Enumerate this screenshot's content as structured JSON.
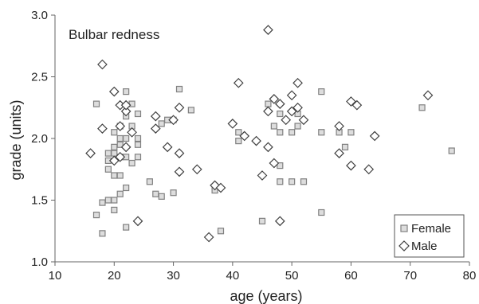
{
  "chart_data": {
    "type": "scatter",
    "title": "Bulbar redness",
    "xlabel": "age (years)",
    "ylabel": "grade (units)",
    "xlim": [
      10,
      80
    ],
    "ylim": [
      1.0,
      3.0
    ],
    "x_ticks": [
      10,
      20,
      30,
      40,
      50,
      60,
      70,
      80
    ],
    "y_ticks": [
      1.0,
      1.5,
      2.0,
      2.5,
      3.0
    ],
    "x_tick_labels": [
      "10",
      "20",
      "30",
      "40",
      "50",
      "60",
      "70",
      "80"
    ],
    "y_tick_labels": [
      "1.0",
      "1.5",
      "2.0",
      "2.5",
      "3.0"
    ],
    "grid": false,
    "legend_position": "bottom-right",
    "series": [
      {
        "name": "Female",
        "marker": "square",
        "color": "#808080",
        "points": [
          [
            17,
            2.28
          ],
          [
            17,
            1.38
          ],
          [
            18,
            1.48
          ],
          [
            18,
            1.23
          ],
          [
            19,
            1.88
          ],
          [
            19,
            1.82
          ],
          [
            19,
            1.75
          ],
          [
            19,
            1.5
          ],
          [
            20,
            2.05
          ],
          [
            20,
            1.93
          ],
          [
            20,
            1.88
          ],
          [
            20,
            1.7
          ],
          [
            20,
            1.5
          ],
          [
            20,
            1.42
          ],
          [
            21,
            2.1
          ],
          [
            21,
            2.0
          ],
          [
            21,
            1.95
          ],
          [
            21,
            1.85
          ],
          [
            21,
            1.7
          ],
          [
            21,
            1.55
          ],
          [
            22,
            2.38
          ],
          [
            22,
            2.18
          ],
          [
            22,
            2.0
          ],
          [
            22,
            1.85
          ],
          [
            22,
            1.6
          ],
          [
            22,
            1.28
          ],
          [
            23,
            2.28
          ],
          [
            23,
            2.1
          ],
          [
            23,
            1.8
          ],
          [
            24,
            2.2
          ],
          [
            24,
            2.0
          ],
          [
            24,
            1.95
          ],
          [
            24,
            1.85
          ],
          [
            26,
            1.65
          ],
          [
            27,
            1.55
          ],
          [
            28,
            2.12
          ],
          [
            28,
            1.53
          ],
          [
            29,
            2.15
          ],
          [
            30,
            2.15
          ],
          [
            30,
            1.56
          ],
          [
            31,
            2.4
          ],
          [
            33,
            2.23
          ],
          [
            37,
            1.58
          ],
          [
            38,
            1.25
          ],
          [
            41,
            2.05
          ],
          [
            41,
            1.98
          ],
          [
            45,
            1.33
          ],
          [
            46,
            2.28
          ],
          [
            47,
            2.1
          ],
          [
            48,
            2.2
          ],
          [
            48,
            2.05
          ],
          [
            48,
            1.78
          ],
          [
            48,
            1.65
          ],
          [
            50,
            2.05
          ],
          [
            50,
            1.65
          ],
          [
            51,
            2.2
          ],
          [
            51,
            2.1
          ],
          [
            52,
            1.65
          ],
          [
            55,
            2.38
          ],
          [
            55,
            2.05
          ],
          [
            55,
            1.4
          ],
          [
            58,
            2.05
          ],
          [
            59,
            1.93
          ],
          [
            60,
            2.05
          ],
          [
            72,
            2.25
          ],
          [
            77,
            1.9
          ]
        ]
      },
      {
        "name": "Male",
        "marker": "diamond",
        "color": "#404040",
        "points": [
          [
            16,
            1.88
          ],
          [
            18,
            2.6
          ],
          [
            18,
            2.08
          ],
          [
            20,
            2.38
          ],
          [
            20,
            1.82
          ],
          [
            21,
            2.27
          ],
          [
            21,
            2.1
          ],
          [
            21,
            1.85
          ],
          [
            22,
            2.22
          ],
          [
            22,
            1.93
          ],
          [
            22,
            2.27
          ],
          [
            23,
            2.05
          ],
          [
            24,
            1.33
          ],
          [
            27,
            2.18
          ],
          [
            27,
            2.08
          ],
          [
            29,
            1.93
          ],
          [
            30,
            2.15
          ],
          [
            31,
            2.25
          ],
          [
            31,
            1.88
          ],
          [
            31,
            1.73
          ],
          [
            34,
            1.75
          ],
          [
            36,
            1.2
          ],
          [
            37,
            1.62
          ],
          [
            38,
            1.6
          ],
          [
            40,
            2.12
          ],
          [
            41,
            2.45
          ],
          [
            42,
            2.02
          ],
          [
            44,
            1.98
          ],
          [
            45,
            1.7
          ],
          [
            46,
            2.88
          ],
          [
            46,
            2.22
          ],
          [
            46,
            1.93
          ],
          [
            47,
            2.32
          ],
          [
            47,
            1.8
          ],
          [
            48,
            2.28
          ],
          [
            48,
            1.33
          ],
          [
            49,
            2.15
          ],
          [
            50,
            2.35
          ],
          [
            50,
            2.22
          ],
          [
            51,
            2.45
          ],
          [
            51,
            2.25
          ],
          [
            52,
            2.15
          ],
          [
            58,
            2.1
          ],
          [
            58,
            1.88
          ],
          [
            60,
            2.3
          ],
          [
            60,
            1.78
          ],
          [
            61,
            2.27
          ],
          [
            63,
            1.75
          ],
          [
            64,
            2.02
          ],
          [
            73,
            2.35
          ]
        ]
      }
    ]
  }
}
